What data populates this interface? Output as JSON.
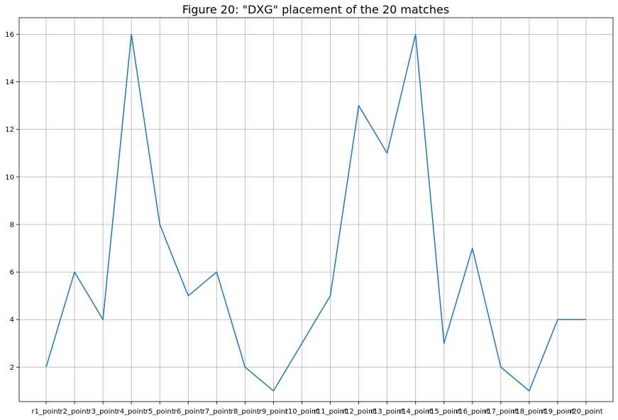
{
  "chart_data": {
    "type": "line",
    "title": "Figure 20: \"DXG\" placement of the 20 matches",
    "xlabel": "",
    "ylabel": "",
    "categories": [
      "r1_point",
      "r2_point",
      "r3_point",
      "r4_point",
      "r5_point",
      "r6_point",
      "r7_point",
      "r8_point",
      "r9_point",
      "r10_point",
      "r11_point",
      "r12_point",
      "r13_point",
      "r14_point",
      "r15_point",
      "r16_point",
      "r17_point",
      "r18_point",
      "r19_point",
      "r20_point"
    ],
    "series": [
      {
        "values": [
          2,
          6,
          4,
          16,
          8,
          5,
          6,
          2,
          1,
          3,
          5,
          13,
          11,
          16,
          3,
          7,
          2,
          1,
          4,
          4
        ],
        "color": "#1f77b4"
      }
    ],
    "ylim": [
      0.55,
      16.7
    ],
    "yticks": [
      2,
      4,
      6,
      8,
      10,
      12,
      14,
      16
    ],
    "grid": true,
    "legend": "none"
  }
}
